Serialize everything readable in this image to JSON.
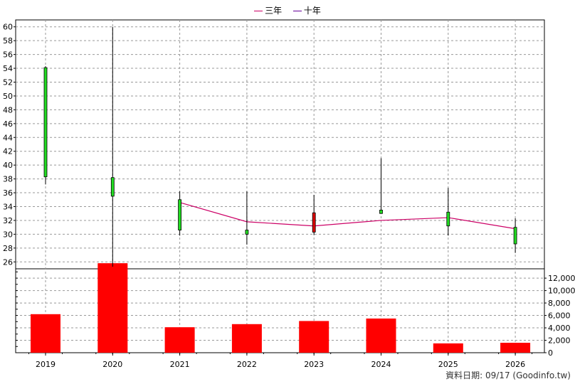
{
  "legend": {
    "three_year": {
      "label": "三年",
      "color": "#cc0066"
    },
    "ten_year": {
      "label": "十年",
      "color": "#660099"
    }
  },
  "footnote": "資料日期: 09/17  (Goodinfo.tw)",
  "chart_data": [
    {
      "type": "candlestick",
      "categories": [
        "2019",
        "2020",
        "2021",
        "2022",
        "2023",
        "2024",
        "2025",
        "2026"
      ],
      "ylim": [
        25,
        61
      ],
      "yticks": [
        26,
        28,
        30,
        32,
        34,
        36,
        38,
        40,
        42,
        44,
        46,
        48,
        50,
        52,
        54,
        56,
        58,
        60
      ],
      "grid": true,
      "candles": [
        {
          "x": "2019",
          "open": 38.3,
          "close": 54.1,
          "high": 54.3,
          "low": 37.2,
          "color": "#22dd22"
        },
        {
          "x": "2020",
          "open": 35.5,
          "close": 38.2,
          "high": 60.0,
          "low": 25.3,
          "color": "#22dd22"
        },
        {
          "x": "2021",
          "open": 30.6,
          "close": 35.0,
          "high": 36.2,
          "low": 29.8,
          "color": "#22dd22"
        },
        {
          "x": "2022",
          "open": 30.0,
          "close": 30.6,
          "high": 36.2,
          "low": 28.5,
          "color": "#22dd22"
        },
        {
          "x": "2023",
          "open": 33.1,
          "close": 30.3,
          "high": 35.7,
          "low": 29.9,
          "color": "#dd0000"
        },
        {
          "x": "2024",
          "open": 33.0,
          "close": 33.5,
          "high": 41.0,
          "low": 33.0,
          "color": "#22dd22"
        },
        {
          "x": "2025",
          "open": 31.2,
          "close": 33.2,
          "high": 36.7,
          "low": 29.8,
          "color": "#22dd22"
        },
        {
          "x": "2026",
          "open": 28.6,
          "close": 31.0,
          "high": 32.3,
          "low": 27.3,
          "color": "#22dd22"
        }
      ],
      "series": [
        {
          "name": "三年",
          "color": "#cc0066",
          "values": [
            null,
            null,
            34.6,
            31.8,
            31.2,
            32.0,
            32.4,
            30.8
          ]
        }
      ]
    },
    {
      "type": "bar",
      "categories": [
        "2019",
        "2020",
        "2021",
        "2022",
        "2023",
        "2024",
        "2025",
        "2026"
      ],
      "values": [
        6200,
        14400,
        4100,
        4600,
        5100,
        5500,
        1500,
        1600
      ],
      "ylim": [
        0,
        13500
      ],
      "yticks": [
        0,
        2000,
        4000,
        6000,
        8000,
        10000,
        12000
      ],
      "yticklabels": [
        "0",
        "2,000",
        "4,000",
        "6,000",
        "8,000",
        "10,000",
        "12,000"
      ],
      "color": "#ff0000",
      "grid": true
    }
  ]
}
